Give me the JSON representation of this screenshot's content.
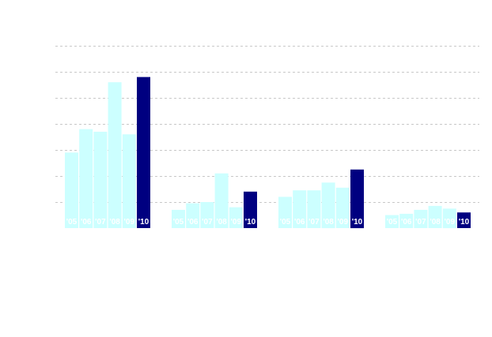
{
  "chart_data": {
    "type": "bar",
    "title": "",
    "xlabel": "",
    "ylabel": "",
    "ylim": [
      0,
      7
    ],
    "grid": true,
    "legend": "none",
    "colors": {
      "normal": "#ccffff",
      "highlight": "#000080",
      "grid": "#c8c8c8",
      "label": "#ffffff"
    },
    "groups": [
      {
        "labels": [
          "'05",
          "'06",
          "'07",
          "'08",
          "'09",
          "'10"
        ],
        "values": [
          2.9,
          3.8,
          3.7,
          5.6,
          3.6,
          5.8
        ],
        "highlight_index": 5
      },
      {
        "labels": [
          "'05",
          "'06",
          "'07",
          "'08",
          "'09",
          "'10"
        ],
        "values": [
          0.7,
          0.95,
          1.0,
          2.1,
          0.8,
          1.4
        ],
        "highlight_index": 5
      },
      {
        "labels": [
          "'05",
          "'06",
          "'07",
          "'08",
          "'09",
          "'10"
        ],
        "values": [
          1.2,
          1.45,
          1.45,
          1.75,
          1.55,
          2.25
        ],
        "highlight_index": 5
      },
      {
        "labels": [
          "'05",
          "'06",
          "'07",
          "'08",
          "'09",
          "'10"
        ],
        "values": [
          0.5,
          0.55,
          0.7,
          0.85,
          0.75,
          0.6
        ],
        "highlight_index": 5
      }
    ]
  }
}
